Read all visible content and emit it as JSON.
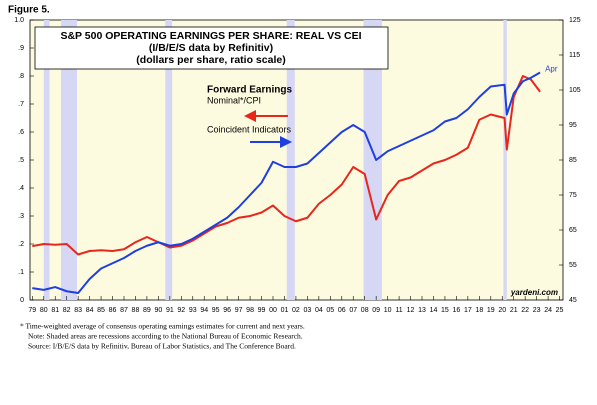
{
  "figure_label": "Figure 5.",
  "chart_data": {
    "type": "line",
    "title": [
      "S&P 500 OPERATING EARNINGS PER SHARE: REAL VS CEI",
      "(I/B/E/S data by Refinitiv)",
      "(dollars per share, ratio scale)"
    ],
    "legend_title": "Forward Earnings",
    "x": [
      1979,
      1980,
      1981,
      1982,
      1983,
      1984,
      1985,
      1986,
      1987,
      1988,
      1989,
      1990,
      1991,
      1992,
      1993,
      1994,
      1995,
      1996,
      1997,
      1998,
      1999,
      2000,
      2001,
      2002,
      2003,
      2004,
      2005,
      2006,
      2007,
      2008,
      2009,
      2010,
      2011,
      2012,
      2013,
      2014,
      2015,
      2016,
      2017,
      2018,
      2019,
      2020.2,
      2020.4,
      2021,
      2021.8,
      2022.5,
      2023.3
    ],
    "series": [
      {
        "name": "Nominal*/CPI",
        "color": "#e8261c",
        "axis": "y2",
        "values": [
          60.4,
          61,
          60.8,
          61,
          58,
          59,
          59.2,
          59,
          59.5,
          61.5,
          63,
          61.5,
          60,
          60.5,
          62,
          64,
          66,
          67,
          68.5,
          69,
          70,
          72,
          69,
          67.5,
          68.5,
          72.5,
          75,
          78,
          83,
          81,
          68,
          75,
          79,
          80,
          82,
          84,
          85,
          86.5,
          88.5,
          96.5,
          98,
          97,
          88,
          103,
          109,
          108,
          104.5
        ]
      },
      {
        "name": "Coincident Indicators",
        "color": "#1f3fe0",
        "axis": "y2",
        "values": [
          48.4,
          47.9,
          48.7,
          47.5,
          47,
          51,
          54,
          55.5,
          57,
          59,
          60.5,
          61.5,
          60.5,
          61,
          62.5,
          64.5,
          66.5,
          68.5,
          71.5,
          75,
          78.5,
          84.5,
          83,
          83,
          84,
          87,
          90,
          93,
          95,
          93,
          85,
          87.5,
          89,
          90.5,
          92,
          93.5,
          96,
          97,
          99.5,
          103,
          106,
          106.5,
          98,
          104,
          107.5,
          108.5,
          110
        ]
      }
    ],
    "recessions": [
      [
        1980,
        1980.5
      ],
      [
        1981.5,
        1982.9
      ],
      [
        1990.6,
        1991.2
      ],
      [
        2001.2,
        2001.9
      ],
      [
        2007.9,
        2009.5
      ],
      [
        2020.1,
        2020.4
      ]
    ],
    "xlim": [
      1978.8,
      2025.3
    ],
    "xticks": [
      {
        "value": 1979,
        "label": "79"
      },
      {
        "value": 1980,
        "label": "80"
      },
      {
        "value": 1981,
        "label": "81"
      },
      {
        "value": 1982,
        "label": "82"
      },
      {
        "value": 1983,
        "label": "83"
      },
      {
        "value": 1984,
        "label": "84"
      },
      {
        "value": 1985,
        "label": "85"
      },
      {
        "value": 1986,
        "label": "86"
      },
      {
        "value": 1987,
        "label": "87"
      },
      {
        "value": 1988,
        "label": "88"
      },
      {
        "value": 1989,
        "label": "89"
      },
      {
        "value": 1990,
        "label": "90"
      },
      {
        "value": 1991,
        "label": "91"
      },
      {
        "value": 1992,
        "label": "92"
      },
      {
        "value": 1993,
        "label": "93"
      },
      {
        "value": 1994,
        "label": "94"
      },
      {
        "value": 1995,
        "label": "95"
      },
      {
        "value": 1996,
        "label": "96"
      },
      {
        "value": 1997,
        "label": "97"
      },
      {
        "value": 1998,
        "label": "98"
      },
      {
        "value": 1999,
        "label": "99"
      },
      {
        "value": 2000,
        "label": "00"
      },
      {
        "value": 2001,
        "label": "01"
      },
      {
        "value": 2002,
        "label": "02"
      },
      {
        "value": 2003,
        "label": "03"
      },
      {
        "value": 2004,
        "label": "04"
      },
      {
        "value": 2005,
        "label": "05"
      },
      {
        "value": 2006,
        "label": "06"
      },
      {
        "value": 2007,
        "label": "07"
      },
      {
        "value": 2008,
        "label": "08"
      },
      {
        "value": 2009,
        "label": "09"
      },
      {
        "value": 2010,
        "label": "10"
      },
      {
        "value": 2011,
        "label": "11"
      },
      {
        "value": 2012,
        "label": "12"
      },
      {
        "value": 2013,
        "label": "13"
      },
      {
        "value": 2014,
        "label": "14"
      },
      {
        "value": 2015,
        "label": "15"
      },
      {
        "value": 2016,
        "label": "16"
      },
      {
        "value": 2017,
        "label": "17"
      },
      {
        "value": 2018,
        "label": "18"
      },
      {
        "value": 2019,
        "label": "19"
      },
      {
        "value": 2020,
        "label": "20"
      },
      {
        "value": 2021,
        "label": "21"
      },
      {
        "value": 2022,
        "label": "22"
      },
      {
        "value": 2023,
        "label": "23"
      },
      {
        "value": 2024,
        "label": "24"
      },
      {
        "value": 2025,
        "label": "25"
      }
    ],
    "ylim": [
      0,
      1
    ],
    "yticks": [
      0,
      {
        "value": 0.1,
        "label": ".1"
      },
      {
        "value": 0.2,
        "label": ".2"
      },
      {
        "value": 0.3,
        "label": ".3"
      },
      {
        "value": 0.4,
        "label": ".4"
      },
      {
        "value": 0.5,
        "label": ".5"
      },
      {
        "value": 0.6,
        "label": ".6"
      },
      {
        "value": 0.7,
        "label": ".7"
      },
      {
        "value": 0.8,
        "label": ".8"
      },
      {
        "value": 0.9,
        "label": ".9"
      },
      {
        "value": 1,
        "label": "1.0"
      }
    ],
    "y2lim": [
      45,
      125
    ],
    "y2ticks": [
      45,
      55,
      65,
      75,
      85,
      95,
      105,
      115,
      125
    ],
    "annotations": [
      "Apr",
      "yardeni.com"
    ],
    "notes": [
      "*  Time-weighted average of consensus operating earnings estimates for current and next years.",
      "Note: Shaded areas are recessions according to the National Bureau of Economic Research.",
      "Source: I/B/E/S data by Refinitiv, Bureau of Labor Statistics, and The Conference Board."
    ]
  }
}
